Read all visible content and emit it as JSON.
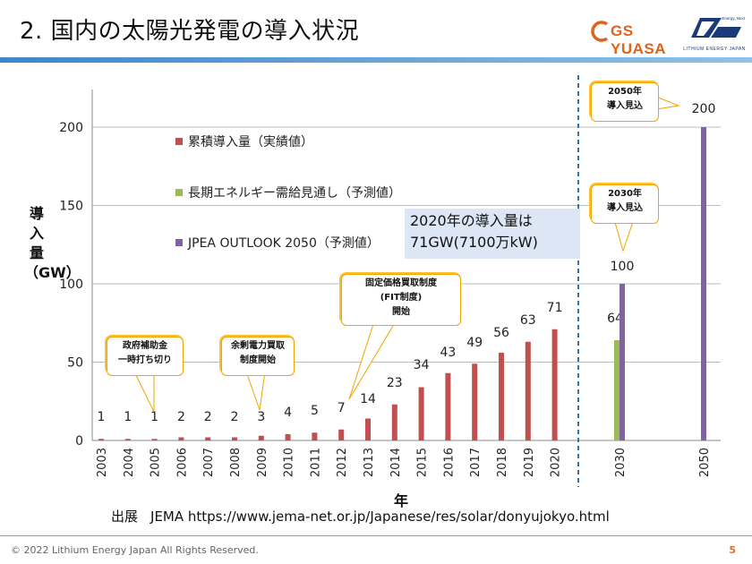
{
  "header": {
    "title": "2. 国内の太陽光発電の導入状況",
    "logo_gs_text": "GS YUASA",
    "logo_lej_text": "LITHIUM ENERGY JAPAN",
    "logo_lej_sub": "Energy, Next"
  },
  "callout": {
    "line1": "2020年の導入量は",
    "line2": "71GW(7100万kW)"
  },
  "annotations": [
    {
      "line1": "政府補助金",
      "line2": "一時打ち切り"
    },
    {
      "line1": "余剰電力買取",
      "line2": "制度開始"
    },
    {
      "line1": "固定価格買取制度",
      "line2": "(FIT制度)",
      "line3": "開始"
    },
    {
      "line1": "2030年",
      "line2": "導入見込"
    },
    {
      "line1": "2050年",
      "line2": "導入見込"
    }
  ],
  "source": {
    "label": "出展",
    "text": "JEMA  https://www.jema-net.or.jp/Japanese/res/solar/donyujokyo.html"
  },
  "footer": {
    "copyright": "© 2022 Lithium Energy Japan All Rights Reserved.",
    "page": "5"
  },
  "colors": {
    "actual": "#c0504d",
    "long_term": "#9bbb59",
    "jpea": "#8064a2",
    "callout_border": "#f0a400",
    "callout_fill": "#fcbf2e",
    "divider": "#2e75b6"
  },
  "chart_data": {
    "type": "bar",
    "ylabel": "導入量（GW）",
    "xlabel": "年",
    "ylim": [
      0,
      200
    ],
    "yticks": [
      0,
      50,
      100,
      150,
      200
    ],
    "grid": true,
    "legend_position": "top-left",
    "categories": [
      "2003",
      "2004",
      "2005",
      "2006",
      "2007",
      "2008",
      "2009",
      "2010",
      "2011",
      "2012",
      "2013",
      "2014",
      "2015",
      "2016",
      "2017",
      "2018",
      "2019",
      "2020",
      "2030",
      "2050"
    ],
    "series": [
      {
        "name": "累積導入量（実績値）",
        "color": "#c0504d",
        "values": [
          1,
          1,
          1,
          2,
          2,
          2,
          3,
          4,
          5,
          7,
          14,
          23,
          34,
          43,
          49,
          56,
          63,
          71,
          null,
          null
        ],
        "labels": [
          "1",
          "1",
          "1",
          "2",
          "2",
          "2",
          "3",
          "4",
          "5",
          "7",
          "14",
          "23",
          "34",
          "43",
          "49",
          "56",
          "63",
          "71",
          "",
          ""
        ]
      },
      {
        "name": "長期エネルギー需給見通し（予測値）",
        "color": "#9bbb59",
        "values": [
          null,
          null,
          null,
          null,
          null,
          null,
          null,
          null,
          null,
          null,
          null,
          null,
          null,
          null,
          null,
          null,
          null,
          null,
          64,
          null
        ],
        "labels": [
          "",
          "",
          "",
          "",
          "",
          "",
          "",
          "",
          "",
          "",
          "",
          "",
          "",
          "",
          "",
          "",
          "",
          "",
          "64",
          ""
        ]
      },
      {
        "name": "JPEA OUTLOOK 2050（予測値）",
        "color": "#8064a2",
        "values": [
          null,
          null,
          null,
          null,
          null,
          null,
          null,
          null,
          null,
          null,
          null,
          null,
          null,
          null,
          null,
          null,
          null,
          null,
          100,
          200
        ],
        "labels": [
          "",
          "",
          "",
          "",
          "",
          "",
          "",
          "",
          "",
          "",
          "",
          "",
          "",
          "",
          "",
          "",
          "",
          "",
          "100",
          "200"
        ]
      }
    ]
  }
}
